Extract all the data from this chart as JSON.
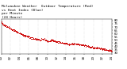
{
  "title_line1": "Milwaukee Weather  Outdoor Temperature (Red)",
  "title_line2": "vs Heat Index (Blue)",
  "title_line3": "per Minute",
  "title_line4": "(24 Hours)",
  "bg_color": "#ffffff",
  "plot_bg_color": "#ffffff",
  "line_color_temp": "#cc0000",
  "grid_color": "#bbbbbb",
  "ylim": [
    28,
    82
  ],
  "xlim": [
    0,
    1440
  ],
  "ytick_values": [
    30,
    35,
    40,
    45,
    50,
    55,
    60,
    65,
    70,
    75,
    80
  ],
  "grid_x_interval": 120,
  "title_fontsize": 3.2,
  "tick_fontsize": 2.8,
  "dot_size": 0.4,
  "dot_subsample": 3
}
